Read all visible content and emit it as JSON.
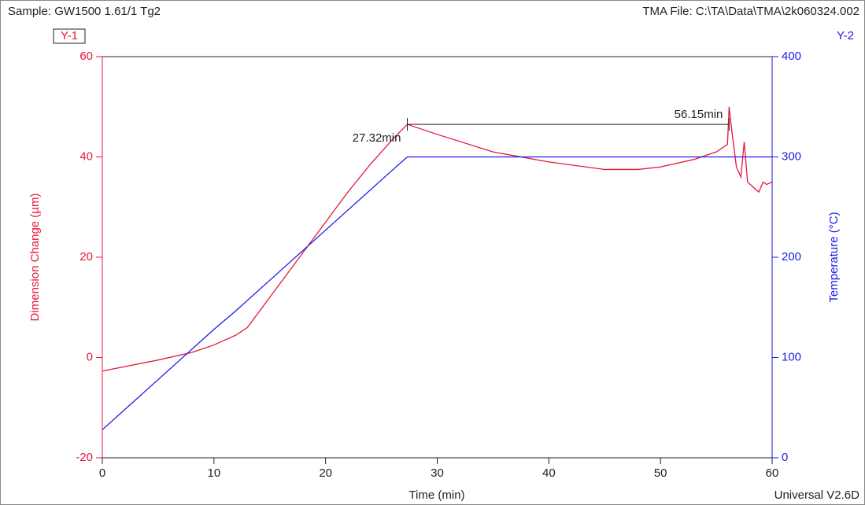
{
  "chart_data": {
    "type": "line",
    "title": "Sample: GW1500  1.61/1  Tg2",
    "file": "TMA File: C:\\TA\\Data\\TMA\\2k060324.002",
    "footer": "Universal V2.6D",
    "y_axis_tag": "Y-1",
    "y2_axis_tag": "Y-2",
    "x_label": "Time (min)",
    "y_label": "Dimension Change (µm)",
    "y2_label": "Temperature (°C)",
    "x": [
      0,
      5,
      8,
      10,
      12,
      13,
      15,
      17,
      19,
      20,
      22,
      24,
      26,
      27.32,
      30,
      35,
      40,
      45,
      48,
      50,
      53,
      55,
      56,
      56.15,
      56.4,
      56.8,
      57.2,
      57.5,
      57.8,
      58.3,
      58.8,
      59.2,
      59.5,
      60
    ],
    "series": [
      {
        "name": "Dimension Change",
        "color": "#e5173a",
        "axis": "y",
        "values": [
          -2.7,
          -0.5,
          1,
          2.5,
          4.5,
          6,
          12,
          18,
          24,
          27,
          33,
          38.5,
          43.5,
          46.5,
          44.5,
          41,
          39,
          37.5,
          37.5,
          38,
          39.5,
          41,
          42.5,
          50,
          45,
          38,
          36,
          43,
          35,
          34,
          33,
          35,
          34.5,
          35
        ]
      },
      {
        "name": "Temperature",
        "color": "#1a1ae6",
        "axis": "y2",
        "values": [
          28,
          78,
          108,
          128,
          147,
          157,
          177,
          197,
          217,
          227,
          247,
          267,
          287,
          300,
          300,
          300,
          300,
          300,
          300,
          300,
          300,
          300,
          300,
          300,
          300,
          300,
          300,
          300,
          300,
          300,
          300,
          300,
          300,
          300
        ]
      }
    ],
    "annotations": [
      {
        "x": 27.32,
        "y": 46.5,
        "label": "27.32min"
      },
      {
        "x": 56.15,
        "y": 46.5,
        "label": "56.15min"
      }
    ],
    "xlim": [
      0,
      60
    ],
    "xticks": [
      0,
      10,
      20,
      30,
      40,
      50,
      60
    ],
    "ylim": [
      -20,
      60
    ],
    "yticks": [
      -20,
      0,
      20,
      40,
      60
    ],
    "y2lim": [
      0,
      400
    ],
    "y2ticks": [
      0,
      100,
      200,
      300,
      400
    ]
  }
}
